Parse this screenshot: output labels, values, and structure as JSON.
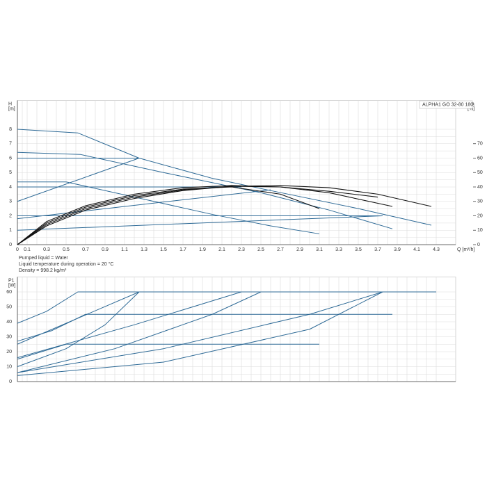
{
  "chart_data": [
    {
      "type": "line",
      "title": "ALPHA1 GO 32-80 180",
      "xlabel": "Q [m³/h]",
      "ylabel": "H",
      "yunit": "[m]",
      "y2label": "eta",
      "y2unit": "[%]",
      "xlim": [
        0,
        4.5
      ],
      "xticks": [
        0,
        0.1,
        0.3,
        0.5,
        0.7,
        0.9,
        1.1,
        1.3,
        1.5,
        1.7,
        1.9,
        2.1,
        2.3,
        2.5,
        2.7,
        2.9,
        3.1,
        3.3,
        3.5,
        3.7,
        3.9,
        4.1,
        4.3
      ],
      "ylim": [
        0,
        10
      ],
      "yticks": [
        0,
        1,
        2,
        3,
        4,
        5,
        6,
        7,
        8
      ],
      "y2lim": [
        0,
        100
      ],
      "y2ticks": [
        0,
        10,
        20,
        30,
        40,
        50,
        60,
        70
      ],
      "grid": true,
      "notes": [
        "Pumped liquid = Water",
        "Liquid temperature during operation = 20 °C",
        "Density = 998.2 kg/m³"
      ],
      "series": [
        {
          "color": "#2e6a96",
          "x": [
            0,
            0.62,
            1.25,
            2,
            2.6,
            3.5,
            4.25
          ],
          "values": [
            8,
            7.75,
            6.0,
            4.6,
            3.75,
            2.5,
            1.35
          ]
        },
        {
          "color": "#2e6a96",
          "x": [
            0,
            0.65,
            1.5,
            2.5,
            3.2,
            3.85
          ],
          "values": [
            6.4,
            6.25,
            5.0,
            3.6,
            2.4,
            1.1
          ]
        },
        {
          "color": "#2e6a96",
          "x": [
            0,
            0.5,
            1.2,
            2,
            2.6,
            3.1
          ],
          "values": [
            4.35,
            4.35,
            3.3,
            2.1,
            1.3,
            0.75
          ]
        },
        {
          "color": "#2e6a96",
          "x": [
            0,
            1.25
          ],
          "values": [
            6,
            6
          ]
        },
        {
          "color": "#2e6a96",
          "x": [
            0,
            1.25
          ],
          "values": [
            3,
            6
          ]
        },
        {
          "color": "#2e6a96",
          "x": [
            0,
            2.3
          ],
          "values": [
            4,
            4
          ]
        },
        {
          "color": "#2e6a96",
          "x": [
            0,
            2.6
          ],
          "values": [
            1.8,
            3.8
          ]
        },
        {
          "color": "#2e6a96",
          "x": [
            0,
            3.75
          ],
          "values": [
            2,
            2
          ]
        },
        {
          "color": "#2e6a96",
          "x": [
            0,
            3.75
          ],
          "values": [
            1,
            2
          ]
        },
        {
          "color": "#111111",
          "axis": "y2",
          "x": [
            0,
            0.3,
            0.7,
            1.2,
            1.7,
            2.2,
            2.7,
            3.1
          ],
          "values": [
            0,
            15,
            26,
            34,
            38.5,
            40,
            35,
            25
          ]
        },
        {
          "color": "#111111",
          "axis": "y2",
          "x": [
            0,
            0.3,
            0.7,
            1.2,
            1.7,
            2.2,
            2.7,
            3.2,
            3.85
          ],
          "values": [
            0,
            14,
            25,
            33,
            38,
            40.5,
            40,
            36,
            26.5
          ]
        },
        {
          "color": "#111111",
          "axis": "y2",
          "x": [
            0,
            0.3,
            0.7,
            1.2,
            1.7,
            2.2,
            2.7,
            3.2,
            3.7,
            4.25
          ],
          "values": [
            0,
            13,
            24,
            32,
            37.5,
            40.5,
            41,
            39.5,
            35,
            26.5
          ]
        },
        {
          "color": "#111111",
          "axis": "y2",
          "x": [
            0,
            0.3,
            0.7,
            1.2,
            1.7,
            2.2,
            2.7,
            3.2,
            3.7
          ],
          "values": [
            0,
            16,
            27,
            35,
            39.5,
            41,
            40,
            37,
            33
          ]
        }
      ]
    },
    {
      "type": "line",
      "ylabel": "P1",
      "yunit": "[W]",
      "xlim": [
        0,
        4.5
      ],
      "ylim": [
        0,
        70
      ],
      "yticks": [
        0,
        10,
        20,
        30,
        40,
        50,
        60
      ],
      "grid": true,
      "series": [
        {
          "color": "#2e6a96",
          "x": [
            0,
            0.3,
            0.62,
            4.3
          ],
          "values": [
            39,
            47,
            60,
            60
          ]
        },
        {
          "color": "#2e6a96",
          "x": [
            0,
            0.35,
            0.7,
            3.85
          ],
          "values": [
            27,
            34,
            45,
            45
          ]
        },
        {
          "color": "#2e6a96",
          "x": [
            0,
            0.5,
            3.1
          ],
          "values": [
            15,
            25,
            25
          ]
        },
        {
          "color": "#2e6a96",
          "x": [
            0,
            0.5,
            0.9,
            1.25
          ],
          "values": [
            10,
            22,
            38,
            60
          ]
        },
        {
          "color": "#2e6a96",
          "x": [
            0,
            1.25
          ],
          "values": [
            25,
            60
          ]
        },
        {
          "color": "#2e6a96",
          "x": [
            0,
            1.2,
            2.3
          ],
          "values": [
            16,
            38,
            60
          ]
        },
        {
          "color": "#2e6a96",
          "x": [
            0,
            1,
            2,
            2.5
          ],
          "values": [
            6,
            22,
            45,
            60
          ]
        },
        {
          "color": "#2e6a96",
          "x": [
            0,
            1.5,
            3,
            3.75
          ],
          "values": [
            6,
            22,
            45,
            60
          ]
        },
        {
          "color": "#2e6a96",
          "x": [
            0,
            1.5,
            3,
            3.75
          ],
          "values": [
            4,
            13,
            35,
            60
          ]
        }
      ]
    }
  ]
}
